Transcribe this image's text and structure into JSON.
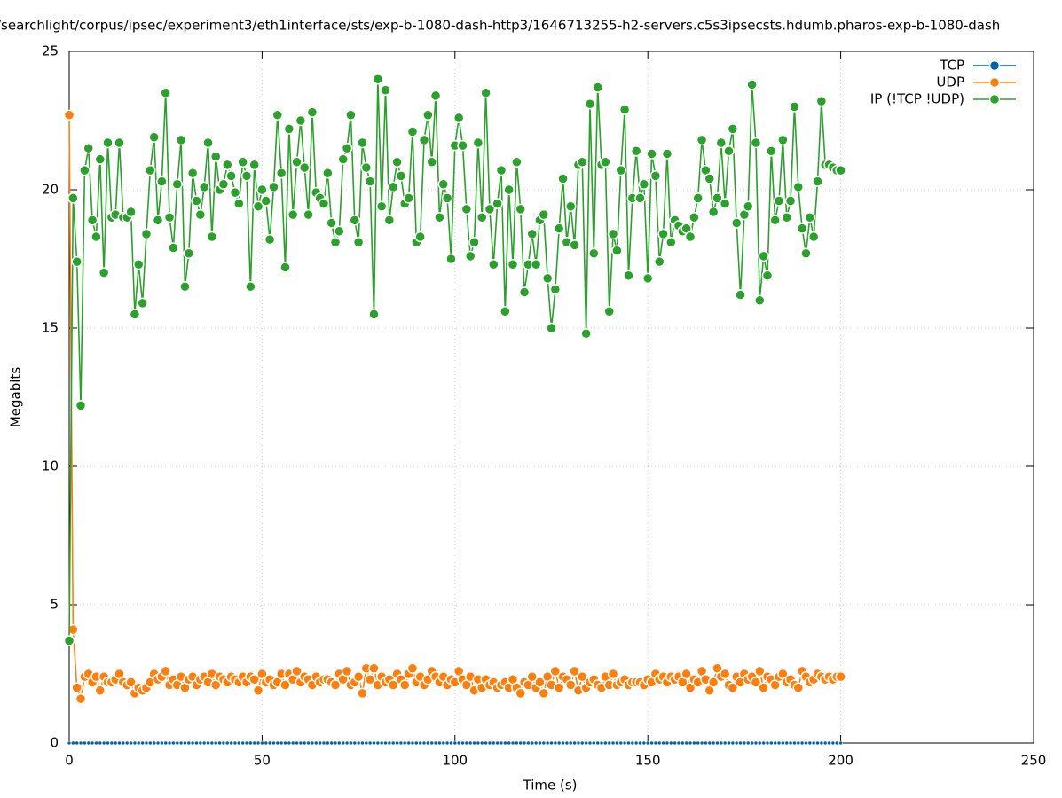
{
  "chart_data": {
    "type": "line",
    "title": "/searchlight/corpus/ipsec/experiment3/eth1interface/sts/exp-b-1080-dash-http3/1646713255-h2-servers.c5s3ipsecsts.hdumb.pharos-exp-b-1080-dash",
    "x_label": "Time (s)",
    "y_label": "Megabits",
    "xlim": [
      0,
      250
    ],
    "xticks": [
      0,
      50,
      100,
      150,
      200,
      250
    ],
    "ylim": [
      0,
      25
    ],
    "yticks": [
      0,
      5,
      10,
      15,
      20,
      25
    ],
    "grid": true,
    "legend": "top-right",
    "x": [
      0,
      1,
      2,
      3,
      4,
      5,
      6,
      7,
      8,
      9,
      10,
      11,
      12,
      13,
      14,
      15,
      16,
      17,
      18,
      19,
      20,
      21,
      22,
      23,
      24,
      25,
      26,
      27,
      28,
      29,
      30,
      31,
      32,
      33,
      34,
      35,
      36,
      37,
      38,
      39,
      40,
      41,
      42,
      43,
      44,
      45,
      46,
      47,
      48,
      49,
      50,
      51,
      52,
      53,
      54,
      55,
      56,
      57,
      58,
      59,
      60,
      61,
      62,
      63,
      64,
      65,
      66,
      67,
      68,
      69,
      70,
      71,
      72,
      73,
      74,
      75,
      76,
      77,
      78,
      79,
      80,
      81,
      82,
      83,
      84,
      85,
      86,
      87,
      88,
      89,
      90,
      91,
      92,
      93,
      94,
      95,
      96,
      97,
      98,
      99,
      100,
      101,
      102,
      103,
      104,
      105,
      106,
      107,
      108,
      109,
      110,
      111,
      112,
      113,
      114,
      115,
      116,
      117,
      118,
      119,
      120,
      121,
      122,
      123,
      124,
      125,
      126,
      127,
      128,
      129,
      130,
      131,
      132,
      133,
      134,
      135,
      136,
      137,
      138,
      139,
      140,
      141,
      142,
      143,
      144,
      145,
      146,
      147,
      148,
      149,
      150,
      151,
      152,
      153,
      154,
      155,
      156,
      157,
      158,
      159,
      160,
      161,
      162,
      163,
      164,
      165,
      166,
      167,
      168,
      169,
      170,
      171,
      172,
      173,
      174,
      175,
      176,
      177,
      178,
      179,
      180,
      181,
      182,
      183,
      184,
      185,
      186,
      187,
      188,
      189,
      190,
      191,
      192,
      193,
      194,
      195,
      196,
      197,
      198,
      199,
      200
    ],
    "series": [
      {
        "name": "TCP",
        "color": "#0060ad",
        "values": [
          0,
          0,
          0,
          0,
          0,
          0,
          0,
          0,
          0,
          0,
          0,
          0,
          0,
          0,
          0,
          0,
          0,
          0,
          0,
          0,
          0,
          0,
          0,
          0,
          0,
          0,
          0,
          0,
          0,
          0,
          0,
          0,
          0,
          0,
          0,
          0,
          0,
          0,
          0,
          0,
          0,
          0,
          0,
          0,
          0,
          0,
          0,
          0,
          0,
          0,
          0,
          0,
          0,
          0,
          0,
          0,
          0,
          0,
          0,
          0,
          0,
          0,
          0,
          0,
          0,
          0,
          0,
          0,
          0,
          0,
          0,
          0,
          0,
          0,
          0,
          0,
          0,
          0,
          0,
          0,
          0,
          0,
          0,
          0,
          0,
          0,
          0,
          0,
          0,
          0,
          0,
          0,
          0,
          0,
          0,
          0,
          0,
          0,
          0,
          0,
          0,
          0,
          0,
          0,
          0,
          0,
          0,
          0,
          0,
          0,
          0,
          0,
          0,
          0,
          0,
          0,
          0,
          0,
          0,
          0,
          0,
          0,
          0,
          0,
          0,
          0,
          0,
          0,
          0,
          0,
          0,
          0,
          0,
          0,
          0,
          0,
          0,
          0,
          0,
          0,
          0,
          0,
          0,
          0,
          0,
          0,
          0,
          0,
          0,
          0,
          0,
          0,
          0,
          0,
          0,
          0,
          0,
          0,
          0,
          0,
          0,
          0,
          0,
          0,
          0,
          0,
          0,
          0,
          0,
          0,
          0,
          0,
          0,
          0,
          0,
          0,
          0,
          0,
          0,
          0,
          0,
          0,
          0,
          0,
          0,
          0,
          0,
          0,
          0,
          0,
          0,
          0,
          0,
          0,
          0,
          0,
          0,
          0,
          0,
          0,
          0
        ]
      },
      {
        "name": "UDP",
        "color": "#ff7f0e",
        "values": [
          22.7,
          4.1,
          2.0,
          1.6,
          2.4,
          2.5,
          2.2,
          2.4,
          1.9,
          2.4,
          2.2,
          2.2,
          2.3,
          2.5,
          2.2,
          2.1,
          2.2,
          1.8,
          2.0,
          1.9,
          2.0,
          2.2,
          2.5,
          2.3,
          2.4,
          2.6,
          2.1,
          2.3,
          2.1,
          2.4,
          2.0,
          2.3,
          2.4,
          2.1,
          2.3,
          2.4,
          2.2,
          2.5,
          2.1,
          2.4,
          2.3,
          2.2,
          2.4,
          2.3,
          2.2,
          2.4,
          2.2,
          2.4,
          2.3,
          1.9,
          2.5,
          2.2,
          2.3,
          2.1,
          2.2,
          2.5,
          2.1,
          2.5,
          2.3,
          2.6,
          2.2,
          2.4,
          2.3,
          2.1,
          2.4,
          2.2,
          2.3,
          2.3,
          2.2,
          2.1,
          2.5,
          2.3,
          2.6,
          2.1,
          2.2,
          2.4,
          1.8,
          2.7,
          2.3,
          2.7,
          2.1,
          2.4,
          2.2,
          2.3,
          2.1,
          2.5,
          2.3,
          2.1,
          2.5,
          2.7,
          2.2,
          2.4,
          2.1,
          2.3,
          2.6,
          2.4,
          2.2,
          2.4,
          2.1,
          2.3,
          2.2,
          2.6,
          2.3,
          2.1,
          2.4,
          1.9,
          2.3,
          2.0,
          2.3,
          2.1,
          2.2,
          2.0,
          2.1,
          2.2,
          2.0,
          2.3,
          2.0,
          1.8,
          2.2,
          2.1,
          2.4,
          2.0,
          2.2,
          1.8,
          2.4,
          2.1,
          2.6,
          2.0,
          2.4,
          2.3,
          2.1,
          2.6,
          1.9,
          2.4,
          2.0,
          2.2,
          2.3,
          2.1,
          2.0,
          2.4,
          2.1,
          2.5,
          2.1,
          2.2,
          2.3,
          2.1,
          2.2,
          2.2,
          2.2,
          2.1,
          2.3,
          2.2,
          2.5,
          2.3,
          2.4,
          2.2,
          2.4,
          2.3,
          2.4,
          2.2,
          2.5,
          2.0,
          2.3,
          2.2,
          2.6,
          2.3,
          1.9,
          2.2,
          2.7,
          2.4,
          2.5,
          2.1,
          2.0,
          2.4,
          2.2,
          2.5,
          2.3,
          2.4,
          2.2,
          2.6,
          2.0,
          2.4,
          2.3,
          2.1,
          2.4,
          2.5,
          2.2,
          2.3,
          2.1,
          2.0,
          2.6,
          2.4,
          2.2,
          2.3,
          2.5,
          2.4,
          2.3,
          2.4,
          2.3,
          2.4,
          2.4
        ]
      },
      {
        "name": "IP (!TCP  !UDP)",
        "color": "#2ca02c",
        "values": [
          3.7,
          19.7,
          17.4,
          12.2,
          20.7,
          21.5,
          18.9,
          18.3,
          21.1,
          17.0,
          21.7,
          19.0,
          19.1,
          21.7,
          19.0,
          19.0,
          19.2,
          15.5,
          17.3,
          15.9,
          18.4,
          20.7,
          21.9,
          18.9,
          20.3,
          23.5,
          19.0,
          17.9,
          20.2,
          21.8,
          16.5,
          17.7,
          20.6,
          19.6,
          19.1,
          20.1,
          21.7,
          18.3,
          21.2,
          20.0,
          20.2,
          20.9,
          20.5,
          19.9,
          19.5,
          21.0,
          20.5,
          16.5,
          20.9,
          19.4,
          20.0,
          19.6,
          18.2,
          20.1,
          22.7,
          20.6,
          17.2,
          22.2,
          19.1,
          21.0,
          22.5,
          20.8,
          19.1,
          22.8,
          19.9,
          19.7,
          19.5,
          20.6,
          18.8,
          18.1,
          18.5,
          21.1,
          21.5,
          22.7,
          18.9,
          18.1,
          21.7,
          20.8,
          20.3,
          15.5,
          24.0,
          19.4,
          23.6,
          18.9,
          20.1,
          21.0,
          20.5,
          19.5,
          19.7,
          22.1,
          18.1,
          18.3,
          21.8,
          22.7,
          21.0,
          23.4,
          19.0,
          20.2,
          19.7,
          17.5,
          21.6,
          22.6,
          21.6,
          19.3,
          17.6,
          18.1,
          21.7,
          19.0,
          23.5,
          19.3,
          17.3,
          19.5,
          20.7,
          15.6,
          20.0,
          17.3,
          21.0,
          19.3,
          16.3,
          17.3,
          18.4,
          17.3,
          18.9,
          19.1,
          16.8,
          15.0,
          16.4,
          18.6,
          20.4,
          18.1,
          19.4,
          18.0,
          20.9,
          21.0,
          14.8,
          23.1,
          17.7,
          23.7,
          20.9,
          21.0,
          15.6,
          18.4,
          17.8,
          20.7,
          22.9,
          16.9,
          19.7,
          21.4,
          19.7,
          20.2,
          16.8,
          21.3,
          20.5,
          17.4,
          18.4,
          21.3,
          18.1,
          18.9,
          18.7,
          18.5,
          18.6,
          18.3,
          19.0,
          19.7,
          21.8,
          20.7,
          20.4,
          19.2,
          19.7,
          21.7,
          19.5,
          21.4,
          22.2,
          18.8,
          16.2,
          19.1,
          19.4,
          23.8,
          21.7,
          16.0,
          17.6,
          16.9,
          21.4,
          18.9,
          19.6,
          21.8,
          19.0,
          19.6,
          23.0,
          20.1,
          18.6,
          17.7,
          19.0,
          18.3,
          20.3,
          23.2,
          20.9,
          20.9,
          20.8,
          20.7,
          20.7
        ]
      }
    ]
  }
}
